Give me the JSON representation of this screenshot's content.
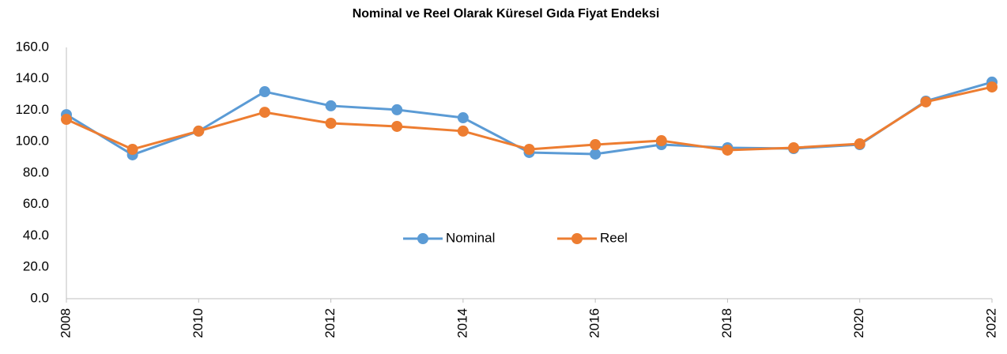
{
  "chart_data": {
    "type": "line",
    "title": "Nominal ve Reel Olarak Küresel Gıda Fiyat Endeksi",
    "x": [
      2008,
      2009,
      2010,
      2011,
      2012,
      2013,
      2014,
      2015,
      2016,
      2017,
      2018,
      2019,
      2020,
      2021,
      2022
    ],
    "series": [
      {
        "name": "Nominal",
        "color": "#5b9bd5",
        "values": [
          117.2,
          91.6,
          106.7,
          131.8,
          122.8,
          120.3,
          115.2,
          93.1,
          92.1,
          98.1,
          96.1,
          95.6,
          98.1,
          125.8,
          137.9
        ]
      },
      {
        "name": "Reel",
        "color": "#ed7d31",
        "values": [
          114.2,
          95.1,
          106.7,
          118.7,
          111.7,
          109.7,
          106.7,
          95.1,
          98.1,
          100.6,
          94.6,
          96.1,
          98.6,
          125.3,
          134.8
        ]
      }
    ],
    "xlim": [
      2008,
      2022
    ],
    "xticks": [
      2008,
      2010,
      2012,
      2014,
      2016,
      2018,
      2020,
      2022
    ],
    "ylim": [
      0,
      160
    ],
    "yticks": [
      {
        "value": 0,
        "label": "0.0"
      },
      {
        "value": 20,
        "label": "20.0"
      },
      {
        "value": 40,
        "label": "40.0"
      },
      {
        "value": 60,
        "label": "60.0"
      },
      {
        "value": 80,
        "label": "80.0"
      },
      {
        "value": 100,
        "label": "100.0"
      },
      {
        "value": 120,
        "label": "120.0"
      },
      {
        "value": 140,
        "label": "140.0"
      },
      {
        "value": 160,
        "label": "160.0"
      }
    ],
    "grid": false,
    "legend": "lower center"
  }
}
